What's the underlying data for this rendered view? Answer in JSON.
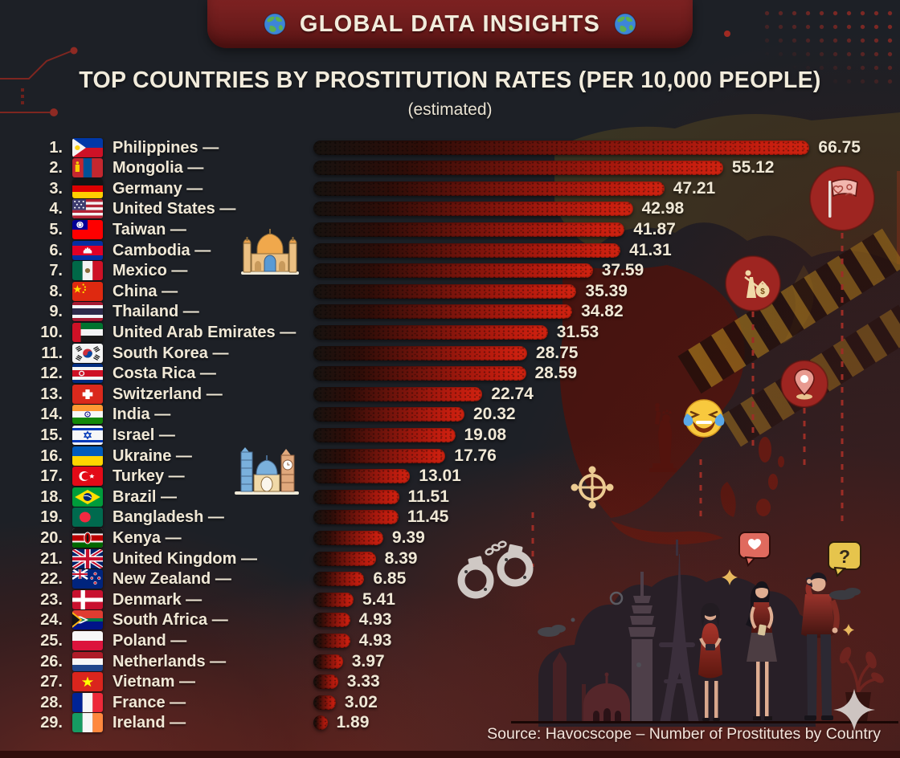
{
  "header": {
    "title": "GLOBAL DATA INSIGHTS"
  },
  "page": {
    "title": "TOP COUNTRIES BY PROSTITUTION RATES (PER 10,000 PEOPLE)",
    "subtitle": "(estimated)",
    "source": "Source: Havocscope – Number of Prostitutes by Country",
    "label_dash": "—"
  },
  "glyphs": {
    "question": "?",
    "dollar": "$"
  },
  "colors": {
    "background": "#1d2026",
    "banner_red": "#6f1d1c",
    "text_cream": "#f1e9d7",
    "bar_red": "#c71e0f",
    "bar_dark": "#17120f",
    "fog_red": "#5c1d17",
    "badge_red": "#9e2521",
    "hazard_yellow": "#b08a1e",
    "map_olive": "#55471f",
    "map_red": "#4e130d"
  },
  "chart_data": {
    "type": "bar",
    "orientation": "horizontal",
    "title": "Top Countries by Prostitution Rates (per 10,000 people)",
    "subtitle": "estimated",
    "value_unit": "prostitutes per 10,000 people",
    "xlim": [
      0,
      70
    ],
    "grid": false,
    "legend": false,
    "rows": [
      {
        "rank": 1,
        "country": "Philippines",
        "value": 66.75,
        "flag": "ph"
      },
      {
        "rank": 2,
        "country": "Mongolia",
        "value": 55.12,
        "flag": "mn"
      },
      {
        "rank": 3,
        "country": "Germany",
        "value": 47.21,
        "flag": "de"
      },
      {
        "rank": 4,
        "country": "United States",
        "value": 42.98,
        "flag": "us"
      },
      {
        "rank": 5,
        "country": "Taiwan",
        "value": 41.87,
        "flag": "tw"
      },
      {
        "rank": 6,
        "country": "Cambodia",
        "value": 41.31,
        "flag": "kh"
      },
      {
        "rank": 7,
        "country": "Mexico",
        "value": 37.59,
        "flag": "mx"
      },
      {
        "rank": 8,
        "country": "China",
        "value": 35.39,
        "flag": "cn"
      },
      {
        "rank": 9,
        "country": "Thailand",
        "value": 34.82,
        "flag": "th"
      },
      {
        "rank": 10,
        "country": "United Arab Emirates",
        "value": 31.53,
        "flag": "ae"
      },
      {
        "rank": 11,
        "country": "South Korea",
        "value": 28.75,
        "flag": "kr"
      },
      {
        "rank": 12,
        "country": "Costa Rica",
        "value": 28.59,
        "flag": "cr"
      },
      {
        "rank": 13,
        "country": "Switzerland",
        "value": 22.74,
        "flag": "ch"
      },
      {
        "rank": 14,
        "country": "India",
        "value": 20.32,
        "flag": "in"
      },
      {
        "rank": 15,
        "country": "Israel",
        "value": 19.08,
        "flag": "il"
      },
      {
        "rank": 16,
        "country": "Ukraine",
        "value": 17.76,
        "flag": "ua"
      },
      {
        "rank": 17,
        "country": "Turkey",
        "value": 13.01,
        "flag": "tr"
      },
      {
        "rank": 18,
        "country": "Brazil",
        "value": 11.51,
        "flag": "br"
      },
      {
        "rank": 19,
        "country": "Bangladesh",
        "value": 11.45,
        "flag": "bd"
      },
      {
        "rank": 20,
        "country": "Kenya",
        "value": 9.39,
        "flag": "ke"
      },
      {
        "rank": 21,
        "country": "United Kingdom",
        "value": 8.39,
        "flag": "gb"
      },
      {
        "rank": 22,
        "country": "New Zealand",
        "value": 6.85,
        "flag": "nz"
      },
      {
        "rank": 23,
        "country": "Denmark",
        "value": 5.41,
        "flag": "dk"
      },
      {
        "rank": 24,
        "country": "South Africa",
        "value": 4.93,
        "flag": "za"
      },
      {
        "rank": 25,
        "country": "Poland",
        "value": 4.93,
        "flag": "pl"
      },
      {
        "rank": 26,
        "country": "Netherlands",
        "value": 3.97,
        "flag": "nl"
      },
      {
        "rank": 27,
        "country": "Vietnam",
        "value": 3.33,
        "flag": "vn"
      },
      {
        "rank": 28,
        "country": "France",
        "value": 3.02,
        "flag": "fr"
      },
      {
        "rank": 29,
        "country": "Ireland",
        "value": 1.89,
        "flag": "ie"
      }
    ]
  },
  "icons": [
    "globe-icon",
    "mosque-icon",
    "landmarks-icon",
    "relationship-flag-badge-icon",
    "money-scale-badge-icon",
    "location-pin-badge-icon",
    "laughing-tears-emoji-icon",
    "statue-of-liberty-icon",
    "compass-icon",
    "handcuffs-icon",
    "heart-message-bubble-icon",
    "question-message-bubble-icon",
    "city-skyline-illustration",
    "people-illustration",
    "plant-illustration",
    "sparkle-icon",
    "world-map-background",
    "hazard-stripes-decoration",
    "dot-grid-decoration",
    "circuit-lines-decoration"
  ]
}
